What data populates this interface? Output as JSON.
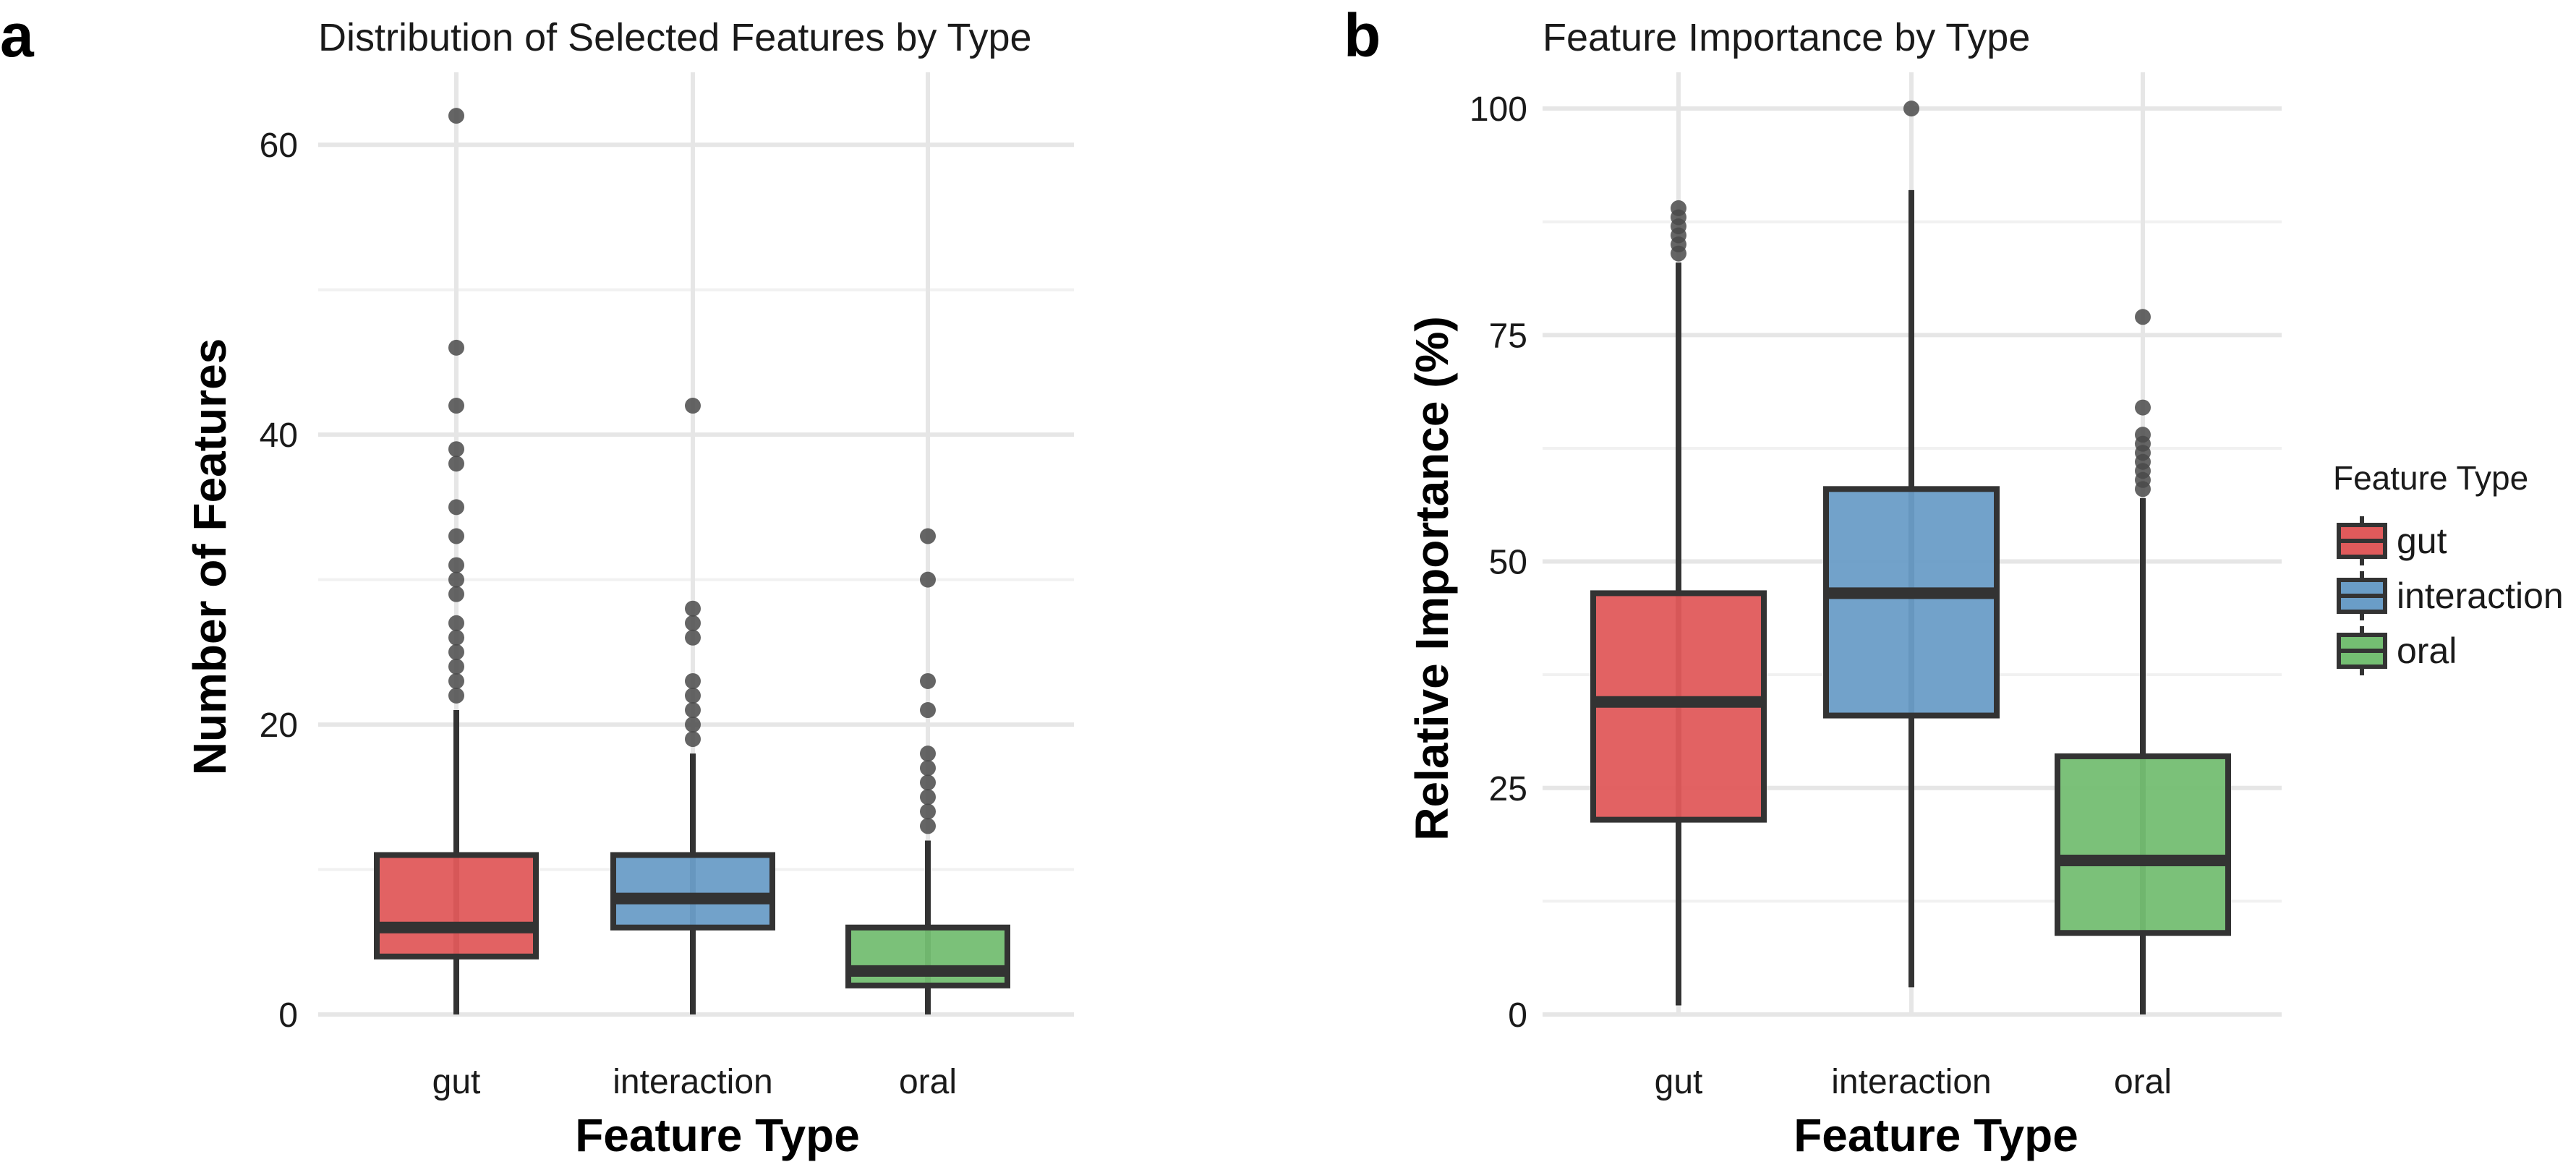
{
  "chart_data": [
    {
      "panel": "a",
      "type": "box",
      "title": "Distribution of Selected Features by Type",
      "xlabel": "Feature Type",
      "ylabel": "Number of Features",
      "ylim": [
        0,
        65
      ],
      "yticks": [
        0,
        20,
        40,
        60
      ],
      "grid": true,
      "categories": [
        "gut",
        "interaction",
        "oral"
      ],
      "boxes": [
        {
          "category": "gut",
          "whisker_low": 0,
          "q1": 4,
          "median": 6,
          "q3": 11,
          "whisker_high": 21,
          "outliers": [
            22,
            23,
            24,
            25,
            26,
            27,
            29,
            30,
            31,
            33,
            35,
            38,
            39,
            42,
            46,
            62
          ]
        },
        {
          "category": "interaction",
          "whisker_low": 0,
          "q1": 6,
          "median": 8,
          "q3": 11,
          "whisker_high": 18,
          "outliers": [
            19,
            20,
            21,
            22,
            23,
            26,
            27,
            28,
            42
          ]
        },
        {
          "category": "oral",
          "whisker_low": 0,
          "q1": 2,
          "median": 3,
          "q3": 6,
          "whisker_high": 12,
          "outliers": [
            13,
            14,
            15,
            16,
            17,
            18,
            21,
            23,
            30,
            33
          ]
        }
      ]
    },
    {
      "panel": "b",
      "type": "box",
      "title": "Feature Importance by Type",
      "xlabel": "Feature Type",
      "ylabel": "Relative Importance (%)",
      "ylim": [
        0,
        104
      ],
      "yticks": [
        0,
        25,
        50,
        75,
        100
      ],
      "grid": true,
      "categories": [
        "gut",
        "interaction",
        "oral"
      ],
      "boxes": [
        {
          "category": "gut",
          "whisker_low": 1,
          "q1": 21.5,
          "median": 34.5,
          "q3": 46.5,
          "whisker_high": 83,
          "outliers": [
            84,
            85,
            86,
            87,
            88,
            89
          ]
        },
        {
          "category": "interaction",
          "whisker_low": 3,
          "q1": 33,
          "median": 46.5,
          "q3": 58,
          "whisker_high": 91,
          "outliers": [
            100
          ]
        },
        {
          "category": "oral",
          "whisker_low": 0,
          "q1": 9,
          "median": 17,
          "q3": 28.5,
          "whisker_high": 57,
          "outliers": [
            58,
            59,
            60,
            61,
            62,
            63,
            64,
            67,
            77
          ]
        }
      ]
    }
  ],
  "legend": {
    "title": "Feature Type",
    "placement": "right",
    "items": [
      {
        "label": "gut",
        "color": "#E05A5B"
      },
      {
        "label": "interaction",
        "color": "#6A9DC7"
      },
      {
        "label": "oral",
        "color": "#74BE72"
      }
    ]
  },
  "colors": {
    "gut": "#E05A5B",
    "interaction": "#6A9DC7",
    "oral": "#74BE72",
    "outline": "#333333",
    "outlier": "#4a4a4a",
    "grid_major": "#e6e6e6",
    "grid_minor": "#f1f1f1"
  }
}
